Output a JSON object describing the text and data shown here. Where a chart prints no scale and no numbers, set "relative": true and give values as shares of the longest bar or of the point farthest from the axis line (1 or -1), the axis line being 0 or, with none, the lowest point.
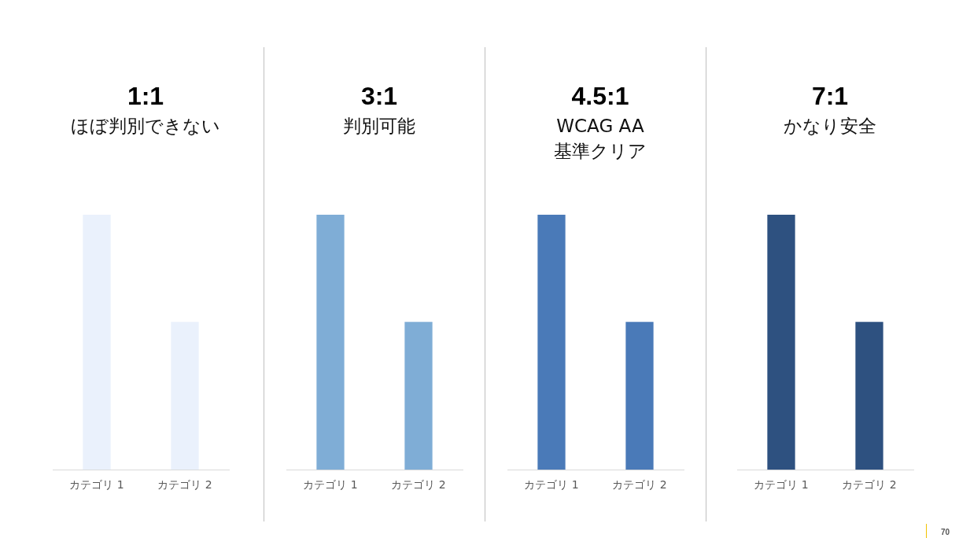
{
  "chart_data": [
    {
      "type": "bar",
      "title": "1:1",
      "subtitle": "ほぼ判別できない",
      "categories": [
        "カテゴリ 1",
        "カテゴリ 2"
      ],
      "values": [
        1,
        0.58
      ],
      "color": "#eaf1fc",
      "relative": true,
      "grid": false,
      "legend": false
    },
    {
      "type": "bar",
      "title": "3:1",
      "subtitle": "判別可能",
      "categories": [
        "カテゴリ 1",
        "カテゴリ 2"
      ],
      "values": [
        1,
        0.58
      ],
      "color": "#7fadd6",
      "relative": true,
      "grid": false,
      "legend": false
    },
    {
      "type": "bar",
      "title": "4.5:1",
      "subtitle": "WCAG AA\n基準クリア",
      "categories": [
        "カテゴリ 1",
        "カテゴリ 2"
      ],
      "values": [
        1,
        0.58
      ],
      "color": "#4a7ab8",
      "relative": true,
      "grid": false,
      "legend": false
    },
    {
      "type": "bar",
      "title": "7:1",
      "subtitle": "かなり安全",
      "categories": [
        "カテゴリ 1",
        "カテゴリ 2"
      ],
      "values": [
        1,
        0.58
      ],
      "color": "#2e5180",
      "relative": true,
      "grid": false,
      "legend": false,
      "annotations": [
        "70"
      ]
    }
  ]
}
